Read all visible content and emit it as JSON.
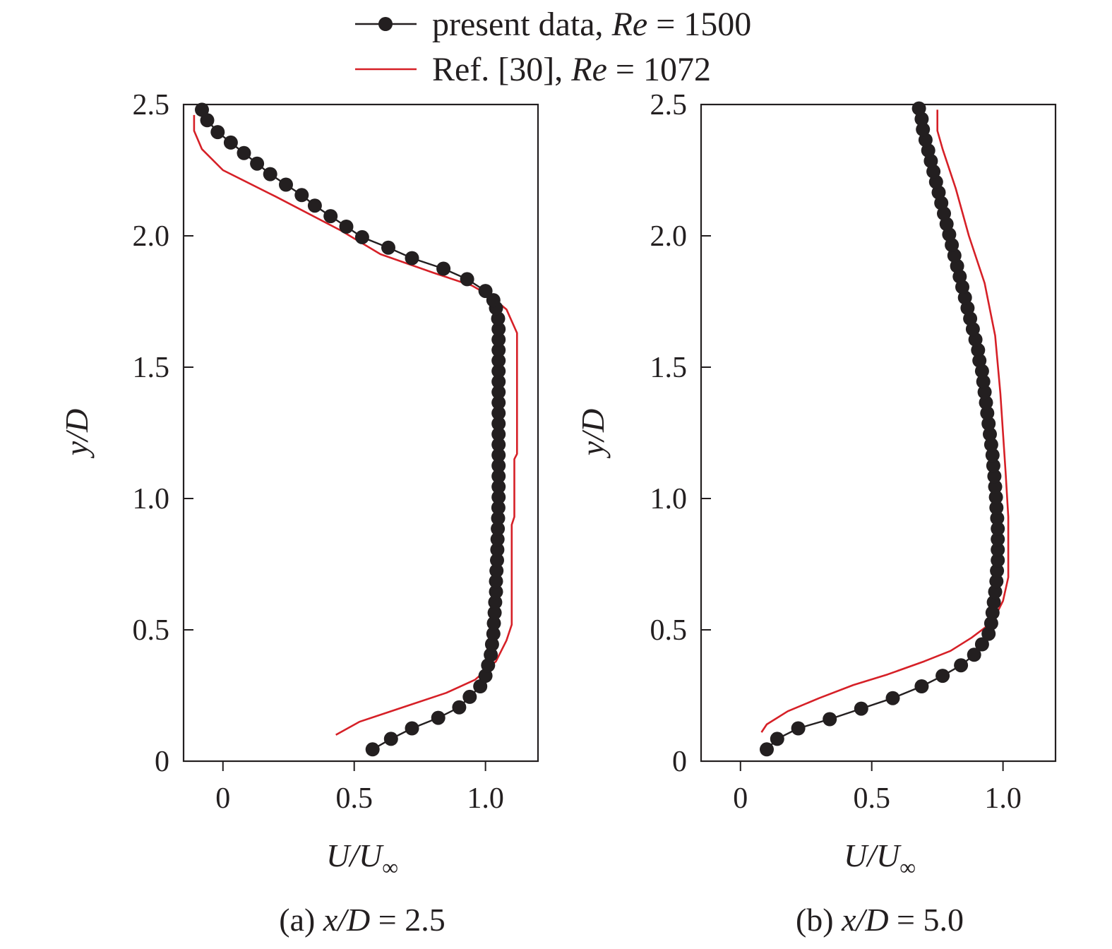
{
  "legend": {
    "present": {
      "label": "present data, ",
      "re_symbol": "Re",
      "re_value": " = 1500"
    },
    "reference": {
      "label": "Ref. [30], ",
      "re_symbol": "Re",
      "re_value": " = 1072"
    }
  },
  "colors": {
    "present": "#231f20",
    "reference": "#d62027",
    "axis": "#231f20"
  },
  "chart_data": [
    {
      "type": "line",
      "panel": "a",
      "caption": {
        "prefix": "(a) ",
        "var": "x/D",
        "value": " = 2.5"
      },
      "xlabel": {
        "num": "U/U",
        "sub": "∞"
      },
      "ylabel": "y/D",
      "xlim": [
        -0.15,
        1.2
      ],
      "ylim": [
        0,
        2.5
      ],
      "xticks": [
        0,
        0.5,
        1.0
      ],
      "xtick_labels": [
        "0",
        "0.5",
        "1.0"
      ],
      "yticks": [
        0,
        0.5,
        1.0,
        1.5,
        2.0,
        2.5
      ],
      "ytick_labels": [
        "0",
        "0.5",
        "1.0",
        "1.5",
        "2.0",
        "2.5"
      ],
      "series": [
        {
          "name": "present data, Re = 1500",
          "style": "line-markers",
          "points": [
            [
              0.57,
              0.045
            ],
            [
              0.64,
              0.085
            ],
            [
              0.72,
              0.125
            ],
            [
              0.82,
              0.165
            ],
            [
              0.9,
              0.205
            ],
            [
              0.94,
              0.245
            ],
            [
              0.98,
              0.285
            ],
            [
              1.0,
              0.325
            ],
            [
              1.01,
              0.365
            ],
            [
              1.02,
              0.405
            ],
            [
              1.025,
              0.445
            ],
            [
              1.03,
              0.485
            ],
            [
              1.032,
              0.525
            ],
            [
              1.035,
              0.565
            ],
            [
              1.037,
              0.605
            ],
            [
              1.04,
              0.645
            ],
            [
              1.04,
              0.685
            ],
            [
              1.042,
              0.725
            ],
            [
              1.044,
              0.765
            ],
            [
              1.045,
              0.805
            ],
            [
              1.046,
              0.845
            ],
            [
              1.047,
              0.885
            ],
            [
              1.048,
              0.925
            ],
            [
              1.049,
              0.965
            ],
            [
              1.05,
              1.005
            ],
            [
              1.05,
              1.045
            ],
            [
              1.05,
              1.085
            ],
            [
              1.05,
              1.125
            ],
            [
              1.05,
              1.165
            ],
            [
              1.05,
              1.205
            ],
            [
              1.05,
              1.245
            ],
            [
              1.05,
              1.285
            ],
            [
              1.05,
              1.325
            ],
            [
              1.05,
              1.365
            ],
            [
              1.05,
              1.405
            ],
            [
              1.05,
              1.445
            ],
            [
              1.05,
              1.485
            ],
            [
              1.05,
              1.525
            ],
            [
              1.05,
              1.565
            ],
            [
              1.05,
              1.605
            ],
            [
              1.05,
              1.645
            ],
            [
              1.048,
              1.685
            ],
            [
              1.04,
              1.725
            ],
            [
              1.03,
              1.755
            ],
            [
              1.0,
              1.79
            ],
            [
              0.93,
              1.835
            ],
            [
              0.84,
              1.875
            ],
            [
              0.72,
              1.915
            ],
            [
              0.63,
              1.955
            ],
            [
              0.53,
              1.995
            ],
            [
              0.47,
              2.035
            ],
            [
              0.41,
              2.075
            ],
            [
              0.35,
              2.115
            ],
            [
              0.3,
              2.155
            ],
            [
              0.24,
              2.195
            ],
            [
              0.18,
              2.235
            ],
            [
              0.13,
              2.275
            ],
            [
              0.08,
              2.315
            ],
            [
              0.03,
              2.355
            ],
            [
              -0.02,
              2.395
            ],
            [
              -0.06,
              2.44
            ],
            [
              -0.08,
              2.48
            ]
          ]
        },
        {
          "name": "Ref. [30], Re = 1072",
          "style": "line",
          "points": [
            [
              0.43,
              0.1
            ],
            [
              0.52,
              0.15
            ],
            [
              0.7,
              0.21
            ],
            [
              0.85,
              0.26
            ],
            [
              0.96,
              0.31
            ],
            [
              1.04,
              0.38
            ],
            [
              1.08,
              0.46
            ],
            [
              1.1,
              0.52
            ],
            [
              1.1,
              0.9
            ],
            [
              1.11,
              0.93
            ],
            [
              1.11,
              1.15
            ],
            [
              1.12,
              1.17
            ],
            [
              1.12,
              1.63
            ],
            [
              1.08,
              1.72
            ],
            [
              1.02,
              1.77
            ],
            [
              0.95,
              1.81
            ],
            [
              0.8,
              1.86
            ],
            [
              0.6,
              1.93
            ],
            [
              0.45,
              2.02
            ],
            [
              0.2,
              2.15
            ],
            [
              0.0,
              2.25
            ],
            [
              -0.08,
              2.33
            ],
            [
              -0.11,
              2.4
            ],
            [
              -0.11,
              2.46
            ]
          ]
        }
      ]
    },
    {
      "type": "line",
      "panel": "b",
      "caption": {
        "prefix": "(b) ",
        "var": "x/D",
        "value": " = 5.0"
      },
      "xlabel": {
        "num": "U/U",
        "sub": "∞"
      },
      "ylabel": "y/D",
      "xlim": [
        -0.15,
        1.2
      ],
      "ylim": [
        0,
        2.5
      ],
      "xticks": [
        0,
        0.5,
        1.0
      ],
      "xtick_labels": [
        "0",
        "0.5",
        "1.0"
      ],
      "yticks": [
        0,
        0.5,
        1.0,
        1.5,
        2.0,
        2.5
      ],
      "ytick_labels": [
        "0",
        "0.5",
        "1.0",
        "1.5",
        "2.0",
        "2.5"
      ],
      "series": [
        {
          "name": "present data, Re = 1500",
          "style": "line-markers",
          "points": [
            [
              0.1,
              0.045
            ],
            [
              0.14,
              0.085
            ],
            [
              0.22,
              0.125
            ],
            [
              0.34,
              0.16
            ],
            [
              0.46,
              0.2
            ],
            [
              0.58,
              0.24
            ],
            [
              0.69,
              0.285
            ],
            [
              0.77,
              0.325
            ],
            [
              0.84,
              0.365
            ],
            [
              0.89,
              0.405
            ],
            [
              0.92,
              0.445
            ],
            [
              0.945,
              0.485
            ],
            [
              0.955,
              0.525
            ],
            [
              0.96,
              0.565
            ],
            [
              0.965,
              0.605
            ],
            [
              0.97,
              0.645
            ],
            [
              0.975,
              0.685
            ],
            [
              0.977,
              0.725
            ],
            [
              0.98,
              0.765
            ],
            [
              0.98,
              0.805
            ],
            [
              0.98,
              0.845
            ],
            [
              0.98,
              0.885
            ],
            [
              0.978,
              0.925
            ],
            [
              0.975,
              0.965
            ],
            [
              0.973,
              1.005
            ],
            [
              0.97,
              1.045
            ],
            [
              0.967,
              1.085
            ],
            [
              0.963,
              1.125
            ],
            [
              0.96,
              1.165
            ],
            [
              0.955,
              1.205
            ],
            [
              0.95,
              1.245
            ],
            [
              0.945,
              1.285
            ],
            [
              0.94,
              1.325
            ],
            [
              0.935,
              1.365
            ],
            [
              0.93,
              1.405
            ],
            [
              0.925,
              1.445
            ],
            [
              0.92,
              1.485
            ],
            [
              0.91,
              1.525
            ],
            [
              0.905,
              1.565
            ],
            [
              0.895,
              1.605
            ],
            [
              0.885,
              1.645
            ],
            [
              0.875,
              1.685
            ],
            [
              0.865,
              1.725
            ],
            [
              0.855,
              1.765
            ],
            [
              0.845,
              1.805
            ],
            [
              0.835,
              1.845
            ],
            [
              0.825,
              1.885
            ],
            [
              0.815,
              1.925
            ],
            [
              0.805,
              1.965
            ],
            [
              0.795,
              2.005
            ],
            [
              0.785,
              2.045
            ],
            [
              0.775,
              2.085
            ],
            [
              0.765,
              2.125
            ],
            [
              0.755,
              2.165
            ],
            [
              0.745,
              2.205
            ],
            [
              0.735,
              2.245
            ],
            [
              0.725,
              2.285
            ],
            [
              0.715,
              2.325
            ],
            [
              0.705,
              2.365
            ],
            [
              0.695,
              2.405
            ],
            [
              0.69,
              2.445
            ],
            [
              0.68,
              2.485
            ]
          ]
        },
        {
          "name": "Ref. [30], Re = 1072",
          "style": "line",
          "points": [
            [
              0.08,
              0.11
            ],
            [
              0.1,
              0.14
            ],
            [
              0.18,
              0.19
            ],
            [
              0.3,
              0.24
            ],
            [
              0.43,
              0.29
            ],
            [
              0.56,
              0.33
            ],
            [
              0.7,
              0.38
            ],
            [
              0.8,
              0.42
            ],
            [
              0.88,
              0.47
            ],
            [
              0.96,
              0.53
            ],
            [
              1.0,
              0.61
            ],
            [
              1.02,
              0.7
            ],
            [
              1.02,
              0.93
            ],
            [
              1.01,
              1.1
            ],
            [
              0.99,
              1.4
            ],
            [
              0.97,
              1.62
            ],
            [
              0.93,
              1.82
            ],
            [
              0.87,
              2.0
            ],
            [
              0.82,
              2.18
            ],
            [
              0.77,
              2.33
            ],
            [
              0.75,
              2.4
            ],
            [
              0.75,
              2.48
            ]
          ]
        }
      ]
    }
  ]
}
